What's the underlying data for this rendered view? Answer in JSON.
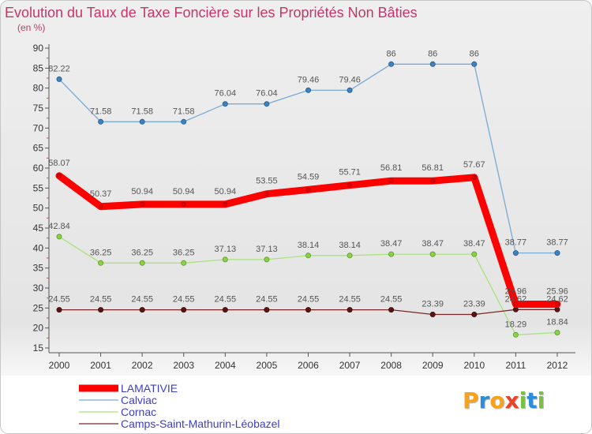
{
  "chart_data": {
    "type": "line",
    "title": "Evolution du Taux de Taxe Foncière sur les Propriétés Non Bâties",
    "subtitle": "(en %)",
    "xlabel": "",
    "ylabel": "",
    "categories": [
      "2000",
      "2001",
      "2002",
      "2003",
      "2004",
      "2005",
      "2006",
      "2007",
      "2008",
      "2009",
      "2010",
      "2011",
      "2012"
    ],
    "ylim": [
      15,
      90
    ],
    "yticks": [
      90,
      85,
      80,
      75,
      70,
      65,
      60,
      55,
      50,
      45,
      40,
      35,
      30,
      25,
      20,
      15
    ],
    "grid": false,
    "legend_position": "bottom-left",
    "series": [
      {
        "name": "LAMATIVIE",
        "color": "#ff0000",
        "marker_color": "#e00000",
        "marker_stroke": "#a80000",
        "values": [
          58.07,
          50.37,
          50.94,
          50.94,
          50.94,
          53.55,
          54.59,
          55.71,
          56.81,
          56.81,
          57.67,
          25.96,
          25.96
        ]
      },
      {
        "name": "Calviac",
        "color": "#7aa9d6",
        "marker_color": "#3c83c4",
        "marker_stroke": "#24598a",
        "values": [
          82.22,
          71.58,
          71.58,
          71.58,
          76.04,
          76.04,
          79.46,
          79.46,
          86,
          86,
          86,
          38.77,
          38.77
        ]
      },
      {
        "name": "Cornac",
        "color": "#a8e27e",
        "marker_color": "#8ad246",
        "marker_stroke": "#5a9a28",
        "values": [
          42.84,
          36.25,
          36.25,
          36.25,
          37.13,
          37.13,
          38.14,
          38.14,
          38.47,
          38.47,
          38.47,
          18.29,
          18.84
        ]
      },
      {
        "name": "Camps-Saint-Mathurin-Léobazel",
        "color": "#7a2626",
        "marker_color": "#5a1414",
        "marker_stroke": "#3a0808",
        "values": [
          24.55,
          24.55,
          24.55,
          24.55,
          24.55,
          24.55,
          24.55,
          24.55,
          24.55,
          23.39,
          23.39,
          24.62,
          24.62
        ]
      }
    ]
  },
  "logo": {
    "letters": [
      "P",
      "r",
      "o",
      "x",
      "i",
      "t",
      "i"
    ],
    "colors": [
      "#f7a21b",
      "#2b8ed8",
      "#f7a21b",
      "#e8432b",
      "#79c043",
      "#2b8ed8",
      "#79c043"
    ]
  }
}
